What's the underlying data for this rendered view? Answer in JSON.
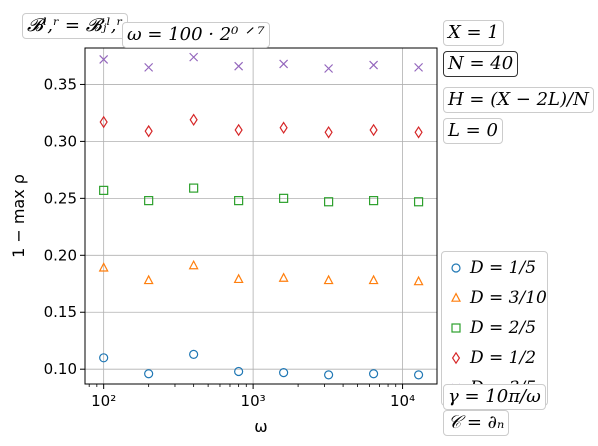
{
  "annotations": {
    "b_relation": "𝓑ˡ,ʳ = 𝓑ⱼˡ,ʳ",
    "omega_def": "ω = 100 · 2⁰ ᐟ ⁷",
    "X": "X = 1",
    "N": "N = 40",
    "H": "H = (X − 2L)/N",
    "L": "L = 0",
    "gamma": "γ = 10π/ω",
    "C": "𝒞 = ∂ₙ"
  },
  "chart_data": {
    "type": "scatter",
    "xlabel": "ω",
    "ylabel": "1 − max ρ",
    "xscale": "log",
    "xlim": [
      75,
      17000
    ],
    "ylim": [
      0.087,
      0.382
    ],
    "x_ticks": [
      {
        "value": 100,
        "label": "10²"
      },
      {
        "value": 1000,
        "label": "10³"
      },
      {
        "value": 10000,
        "label": "10⁴"
      }
    ],
    "y_ticks": [
      0.1,
      0.15,
      0.2,
      0.25,
      0.3,
      0.35
    ],
    "y_tick_labels": [
      "0.10",
      "0.15",
      "0.20",
      "0.25",
      "0.30",
      "0.35"
    ],
    "grid": true,
    "legend_position": "lower-right",
    "x": [
      100,
      200,
      400,
      800,
      1600,
      3200,
      6400,
      12800
    ],
    "series": [
      {
        "name": "D = 1/5",
        "marker": "circle",
        "color": "#1f77b4",
        "values": [
          0.11,
          0.096,
          0.113,
          0.098,
          0.097,
          0.095,
          0.096,
          0.095
        ]
      },
      {
        "name": "D = 3/10",
        "marker": "triangle",
        "color": "#ff7f0e",
        "values": [
          0.189,
          0.178,
          0.191,
          0.179,
          0.18,
          0.178,
          0.178,
          0.177
        ]
      },
      {
        "name": "D = 2/5",
        "marker": "square",
        "color": "#2ca02c",
        "values": [
          0.257,
          0.248,
          0.259,
          0.248,
          0.25,
          0.247,
          0.248,
          0.247
        ]
      },
      {
        "name": "D = 1/2",
        "marker": "diamond",
        "color": "#d62728",
        "values": [
          0.317,
          0.309,
          0.319,
          0.31,
          0.312,
          0.308,
          0.31,
          0.308
        ]
      },
      {
        "name": "D = 3/5",
        "marker": "x",
        "color": "#9467bd",
        "values": [
          0.372,
          0.365,
          0.374,
          0.366,
          0.368,
          0.364,
          0.367,
          0.365
        ]
      }
    ]
  }
}
